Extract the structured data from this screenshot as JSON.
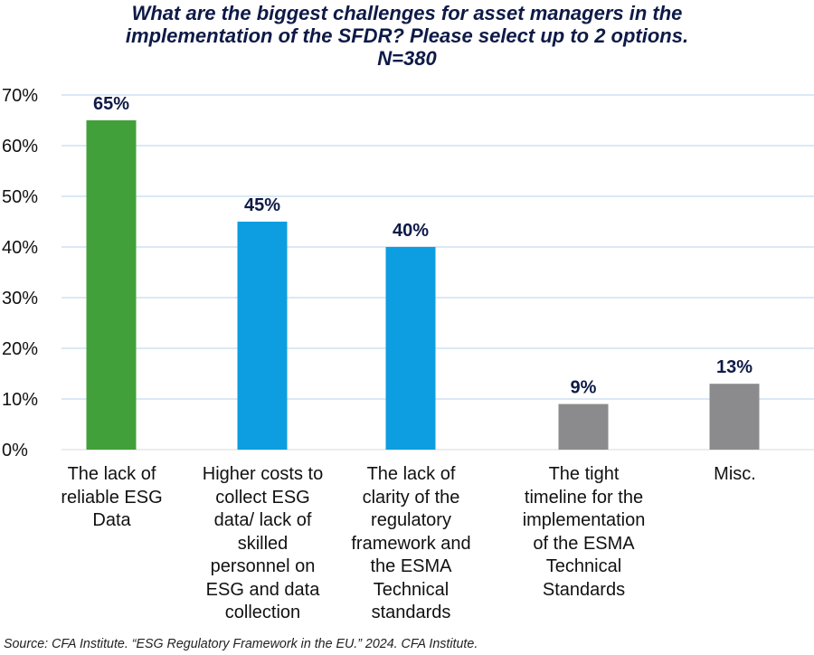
{
  "chart_data": {
    "type": "bar",
    "title": [
      "What are the biggest challenges for asset managers in the",
      "implementation of the SFDR? Please select up to 2 options.",
      "N=380"
    ],
    "categories": [
      [
        "The lack of",
        "reliable ESG",
        "Data"
      ],
      [
        "Higher costs to",
        "collect ESG",
        "data/ lack of",
        "skilled",
        "personnel on",
        "ESG and data",
        "collection"
      ],
      [
        "The lack of",
        "clarity of the",
        "regulatory",
        "framework and",
        "the ESMA",
        "Technical",
        "standards"
      ],
      [
        "The tight",
        "timeline for the",
        "implementation",
        "of the ESMA",
        "Technical",
        "Standards"
      ],
      [
        "Misc."
      ]
    ],
    "values": [
      65,
      45,
      40,
      9,
      13
    ],
    "data_labels": [
      "65%",
      "45%",
      "40%",
      "9%",
      "13%"
    ],
    "colors": [
      "#42a03a",
      "#0c9ee0",
      "#0c9ee0",
      "#8b8b8d",
      "#8b8b8d"
    ],
    "ylim": [
      0,
      70
    ],
    "yticks": [
      "0%",
      "10%",
      "20%",
      "30%",
      "40%",
      "50%",
      "60%",
      "70%"
    ],
    "grid": true,
    "xlabel": "",
    "ylabel": ""
  },
  "source": "Source: CFA Institute. “ESG Regulatory Framework in the EU.” 2024. CFA Institute."
}
